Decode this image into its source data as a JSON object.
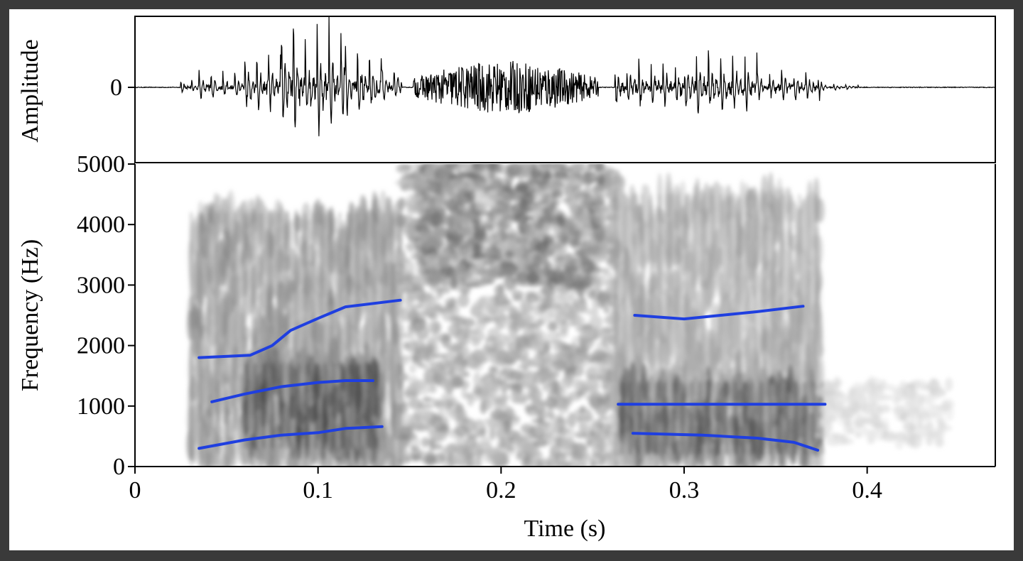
{
  "chart_data": [
    {
      "type": "line",
      "panel": "waveform",
      "ylabel": "Amplitude",
      "y_ticks": [
        {
          "value": 0,
          "label": "0"
        }
      ],
      "xlim": [
        0,
        0.47
      ],
      "ylim": [
        -1,
        1
      ],
      "segments": [
        {
          "t0": 0.025,
          "t1": 0.035,
          "amp": 0.12,
          "period": 0.006
        },
        {
          "t0": 0.035,
          "t1": 0.06,
          "amp": 0.25,
          "period": 0.0065
        },
        {
          "t0": 0.06,
          "t1": 0.08,
          "amp": 0.55,
          "period": 0.0065
        },
        {
          "t0": 0.08,
          "t1": 0.115,
          "amp": 0.95,
          "period": 0.0065
        },
        {
          "t0": 0.115,
          "t1": 0.135,
          "amp": 0.65,
          "period": 0.0065
        },
        {
          "t0": 0.135,
          "t1": 0.146,
          "amp": 0.3,
          "period": 0.0065
        },
        {
          "t0": 0.152,
          "t1": 0.253,
          "amp": 0.38,
          "period": 0.0009
        },
        {
          "t0": 0.262,
          "t1": 0.3,
          "amp": 0.45,
          "period": 0.0066
        },
        {
          "t0": 0.3,
          "t1": 0.34,
          "amp": 0.6,
          "period": 0.0066
        },
        {
          "t0": 0.34,
          "t1": 0.375,
          "amp": 0.28,
          "period": 0.0066
        },
        {
          "t0": 0.375,
          "t1": 0.395,
          "amp": 0.06,
          "period": 0.0066
        }
      ]
    },
    {
      "type": "heatmap",
      "panel": "spectrogram",
      "xlabel": "Time (s)",
      "ylabel": "Frequency (Hz)",
      "xlim": [
        0,
        0.47
      ],
      "ylim": [
        0,
        5000
      ],
      "x_ticks": [
        {
          "value": 0,
          "label": "0"
        },
        {
          "value": 0.1,
          "label": "0.1"
        },
        {
          "value": 0.2,
          "label": "0.2"
        },
        {
          "value": 0.3,
          "label": "0.3"
        },
        {
          "value": 0.4,
          "label": "0.4"
        }
      ],
      "y_ticks": [
        {
          "value": 0,
          "label": "0"
        },
        {
          "value": 1000,
          "label": "1000"
        },
        {
          "value": 2000,
          "label": "2000"
        },
        {
          "value": 3000,
          "label": "3000"
        },
        {
          "value": 4000,
          "label": "4000"
        },
        {
          "value": 5000,
          "label": "5000"
        }
      ],
      "energy_regions": [
        {
          "t0": 0.03,
          "t1": 0.145,
          "f0": 0,
          "f1": 4200,
          "intensity": 0.6,
          "striations": true
        },
        {
          "t0": 0.06,
          "t1": 0.135,
          "f0": 300,
          "f1": 1700,
          "intensity": 0.95,
          "striations": true
        },
        {
          "t0": 0.145,
          "t1": 0.265,
          "f0": 0,
          "f1": 5000,
          "intensity": 0.6,
          "striations": false
        },
        {
          "t0": 0.155,
          "t1": 0.255,
          "f0": 3000,
          "f1": 5000,
          "intensity": 0.8,
          "striations": false
        },
        {
          "t0": 0.262,
          "t1": 0.375,
          "f0": 0,
          "f1": 4500,
          "intensity": 0.5,
          "striations": true
        },
        {
          "t0": 0.265,
          "t1": 0.375,
          "f0": 200,
          "f1": 1400,
          "intensity": 0.9,
          "striations": true
        },
        {
          "t0": 0.375,
          "t1": 0.445,
          "f0": 400,
          "f1": 1400,
          "intensity": 0.25,
          "striations": false
        }
      ],
      "formant_color": "#1f3fe0",
      "formants": [
        {
          "name": "",
          "points": [
            [
              0.035,
              1800
            ],
            [
              0.063,
              1840
            ],
            [
              0.075,
              2000
            ],
            [
              0.085,
              2250
            ],
            [
              0.1,
              2450
            ],
            [
              0.115,
              2640
            ],
            [
              0.145,
              2750
            ]
          ]
        },
        {
          "name": "",
          "points": [
            [
              0.042,
              1070
            ],
            [
              0.06,
              1200
            ],
            [
              0.08,
              1320
            ],
            [
              0.1,
              1390
            ],
            [
              0.115,
              1420
            ],
            [
              0.13,
              1420
            ]
          ]
        },
        {
          "name": "",
          "points": [
            [
              0.035,
              300
            ],
            [
              0.06,
              440
            ],
            [
              0.08,
              520
            ],
            [
              0.1,
              560
            ],
            [
              0.115,
              630
            ],
            [
              0.135,
              660
            ]
          ]
        },
        {
          "name": "",
          "points": [
            [
              0.273,
              2500
            ],
            [
              0.3,
              2440
            ],
            [
              0.32,
              2500
            ],
            [
              0.34,
              2560
            ],
            [
              0.365,
              2650
            ]
          ]
        },
        {
          "name": "",
          "points": [
            [
              0.264,
              1030
            ],
            [
              0.3,
              1030
            ],
            [
              0.34,
              1030
            ],
            [
              0.377,
              1030
            ]
          ]
        },
        {
          "name": "",
          "points": [
            [
              0.272,
              550
            ],
            [
              0.31,
              520
            ],
            [
              0.34,
              470
            ],
            [
              0.36,
              400
            ],
            [
              0.373,
              270
            ]
          ]
        }
      ]
    }
  ]
}
